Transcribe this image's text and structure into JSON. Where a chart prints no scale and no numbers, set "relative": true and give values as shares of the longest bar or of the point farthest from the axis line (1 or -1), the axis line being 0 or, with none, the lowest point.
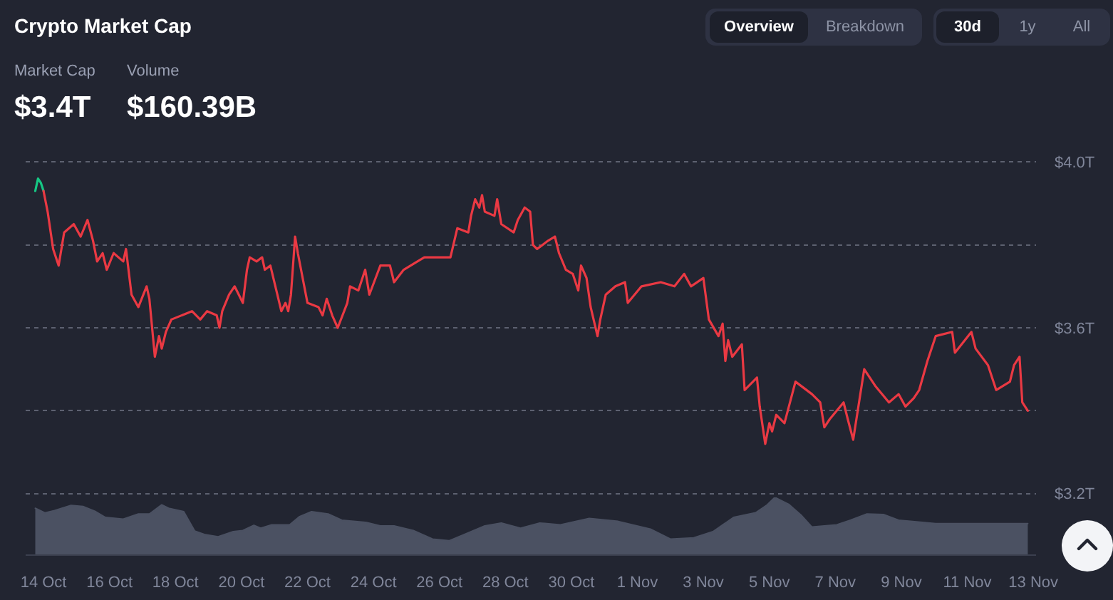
{
  "chart_data": [
    {
      "type": "other",
      "title": "Crypto Market Cap",
      "annotations": [
        "Overview",
        "Breakdown",
        "30d",
        "1y",
        "All",
        "Market Cap",
        "$3.4T",
        "Volume",
        "$160.39B"
      ]
    },
    {
      "type": "line",
      "xlim": [
        "--10-13T11:00",
        "--11-13T02:00"
      ],
      "ylim": [
        3.2,
        4.0
      ],
      "yticks": [
        {
          "value": 3.2,
          "label": "$3.2T"
        },
        {
          "value": 3.4,
          "label": null
        },
        {
          "value": 3.6,
          "label": "$3.6T"
        },
        {
          "value": 3.8,
          "label": null
        },
        {
          "value": 4.0,
          "label": "$4.0T"
        }
      ],
      "grid": "y",
      "tick_labels": "y",
      "series": [
        {
          "color": "#16c784",
          "x": [
            "--10-13T18:00",
            "--10-13T20:00",
            "--10-13T22:00",
            "--10-14T00:00"
          ],
          "values": [
            3.93,
            3.96,
            3.95,
            3.93
          ]
        },
        {
          "color": "#ea3943",
          "x": [
            "--10-14T00:00",
            "--10-14T03:00",
            "--10-14T07:00",
            "--10-14T11:00",
            "--10-14T15:00",
            "--10-14T22:00",
            "--10-15T03:00",
            "--10-15T08:00",
            "--10-15T12:00",
            "--10-15T15:00",
            "--10-15T19:00",
            "--10-15T22:00",
            "--10-16T03:00",
            "--10-16T10:00",
            "--10-16T12:00",
            "--10-16T16:00",
            "--10-16T21:00",
            "--10-17T03:00",
            "--10-17T05:00",
            "--10-17T09:00",
            "--10-17T12:00",
            "--10-17T14:00",
            "--10-17T17:00",
            "--10-17T21:00",
            "--10-18T12:00",
            "--10-18T18:00",
            "--10-18T23:00",
            "--10-19T06:00",
            "--10-19T08:00",
            "--10-19T10:00",
            "--10-19T15:00",
            "--10-19T19:00",
            "--10-20T01:00",
            "--10-20T04:00",
            "--10-20T06:00",
            "--10-20T11:00",
            "--10-20T15:00",
            "--10-20T17:00",
            "--10-20T21:00",
            "--10-21T05:00",
            "--10-21T08:00",
            "--10-21T10:00",
            "--10-21T12:00",
            "--10-21T15:00",
            "--10-21T17:00",
            "--10-22T00:00",
            "--10-22T08:00",
            "--10-22T11:00",
            "--10-22T14:00",
            "--10-22T18:00",
            "--10-22T22:00",
            "--10-23T05:00",
            "--10-23T07:00",
            "--10-23T13:00",
            "--10-23T18:00",
            "--10-23T21:00",
            "--10-24T05:00",
            "--10-24T12:00",
            "--10-24T15:00",
            "--10-24T22:00",
            "--10-25T08:00",
            "--10-25T13:00",
            "--10-26T01:00",
            "--10-26T08:00",
            "--10-26T13:00",
            "--10-26T21:00",
            "--10-26T23:00",
            "--10-27T02:00",
            "--10-27T05:00",
            "--10-27T07:00",
            "--10-27T09:00",
            "--10-27T16:00",
            "--10-27T18:00",
            "--10-27T21:00",
            "--10-28T06:00",
            "--10-28T09:00",
            "--10-28T14:00",
            "--10-28T18:00",
            "--10-28T20:00",
            "--10-28T23:00",
            "--10-29T07:00",
            "--10-29T12:00",
            "--10-29T15:00",
            "--10-29T20:00",
            "--10-30T01:00",
            "--10-30T05:00",
            "--10-30T07:00",
            "--10-30T11:00",
            "--10-30T14:00",
            "--10-30T19:00",
            "--10-30T21:00",
            "--10-31T01:00",
            "--10-31T08:00",
            "--10-31T15:00",
            "--10-31T17:00",
            "--11-01T03:00",
            "--11-01T17:00",
            "--11-02T03:00",
            "--11-02T10:00",
            "--11-02T15:00",
            "--11-03T00:00",
            "--11-03T04:00",
            "--11-03T11:00",
            "--11-03T14:00",
            "--11-03T16:00",
            "--11-03T18:00",
            "--11-03T21:00",
            "--11-04T04:00",
            "--11-04T06:00",
            "--11-04T15:00",
            "--11-04T17:00",
            "--11-04T21:00",
            "--11-05T00:00",
            "--11-05T02:00",
            "--11-05T05:00",
            "--11-05T11:00",
            "--11-05T19:00",
            "--11-06T07:00",
            "--11-06T13:00",
            "--11-06T16:00",
            "--11-06T20:00",
            "--11-07T06:00",
            "--11-07T09:00",
            "--11-07T13:00",
            "--11-07T21:00",
            "--11-08T05:00",
            "--11-08T15:00",
            "--11-08T22:00",
            "--11-09T03:00",
            "--11-09T09:00",
            "--11-09T13:00",
            "--11-09T19:00",
            "--11-10T01:00",
            "--11-10T13:00",
            "--11-10T15:00",
            "--11-11T03:00",
            "--11-11T06:00",
            "--11-11T15:00",
            "--11-11T21:00",
            "--11-12T07:00",
            "--11-12T10:00",
            "--11-12T14:00",
            "--11-12T16:00",
            "--11-12T20:00"
          ],
          "values": [
            3.93,
            3.88,
            3.79,
            3.75,
            3.83,
            3.85,
            3.82,
            3.86,
            3.81,
            3.76,
            3.78,
            3.74,
            3.78,
            3.76,
            3.79,
            3.68,
            3.65,
            3.7,
            3.67,
            3.53,
            3.58,
            3.55,
            3.59,
            3.62,
            3.64,
            3.62,
            3.64,
            3.63,
            3.6,
            3.64,
            3.68,
            3.7,
            3.66,
            3.74,
            3.77,
            3.76,
            3.77,
            3.74,
            3.75,
            3.64,
            3.66,
            3.64,
            3.68,
            3.82,
            3.78,
            3.66,
            3.65,
            3.63,
            3.67,
            3.63,
            3.6,
            3.66,
            3.7,
            3.69,
            3.74,
            3.68,
            3.75,
            3.75,
            3.71,
            3.74,
            3.76,
            3.77,
            3.77,
            3.77,
            3.84,
            3.83,
            3.87,
            3.91,
            3.89,
            3.92,
            3.88,
            3.87,
            3.91,
            3.85,
            3.83,
            3.86,
            3.89,
            3.88,
            3.8,
            3.79,
            3.81,
            3.82,
            3.78,
            3.74,
            3.73,
            3.69,
            3.75,
            3.72,
            3.65,
            3.58,
            3.62,
            3.68,
            3.7,
            3.71,
            3.66,
            3.7,
            3.71,
            3.7,
            3.73,
            3.7,
            3.72,
            3.62,
            3.58,
            3.61,
            3.52,
            3.57,
            3.53,
            3.56,
            3.45,
            3.48,
            3.41,
            3.32,
            3.37,
            3.35,
            3.39,
            3.37,
            3.47,
            3.44,
            3.42,
            3.36,
            3.38,
            3.42,
            3.38,
            3.33,
            3.5,
            3.46,
            3.42,
            3.44,
            3.41,
            3.43,
            3.45,
            3.52,
            3.58,
            3.59,
            3.54,
            3.59,
            3.55,
            3.51,
            3.45,
            3.47,
            3.51,
            3.53,
            3.42,
            3.4
          ]
        }
      ]
    },
    {
      "type": "area",
      "relative": true,
      "color": "#4b5162",
      "tick_labels": "x",
      "xlim": [
        "--10-13T11:00",
        "--11-13T02:00"
      ],
      "xticks": [
        {
          "value": "--10-14",
          "label": "14 Oct"
        },
        {
          "value": "--10-16",
          "label": "16 Oct"
        },
        {
          "value": "--10-18",
          "label": "18 Oct"
        },
        {
          "value": "--10-20",
          "label": "20 Oct"
        },
        {
          "value": "--10-22",
          "label": "22 Oct"
        },
        {
          "value": "--10-24",
          "label": "24 Oct"
        },
        {
          "value": "--10-26",
          "label": "26 Oct"
        },
        {
          "value": "--10-28",
          "label": "28 Oct"
        },
        {
          "value": "--10-30",
          "label": "30 Oct"
        },
        {
          "value": "--11-01",
          "label": "1 Nov"
        },
        {
          "value": "--11-03",
          "label": "3 Nov"
        },
        {
          "value": "--11-05",
          "label": "5 Nov"
        },
        {
          "value": "--11-07",
          "label": "7 Nov"
        },
        {
          "value": "--11-09",
          "label": "9 Nov"
        },
        {
          "value": "--11-11",
          "label": "11 Nov"
        },
        {
          "value": "--11-13",
          "label": "13 Nov"
        }
      ],
      "x": [
        "--10-13T18:00",
        "--10-14T01:00",
        "--10-14T08:00",
        "--10-14T20:00",
        "--10-15T05:00",
        "--10-15T14:00",
        "--10-15T21:00",
        "--10-16T10:00",
        "--10-16T21:00",
        "--10-17T05:00",
        "--10-17T14:00",
        "--10-17T19:00",
        "--10-18T06:00",
        "--10-18T14:00",
        "--10-18T21:00",
        "--10-19T07:00",
        "--10-19T18:00",
        "--10-20T01:00",
        "--10-20T09:00",
        "--10-20T14:00",
        "--10-20T22:00",
        "--10-21T11:00",
        "--10-21T18:00",
        "--10-22T03:00",
        "--10-22T15:00",
        "--10-23T01:00",
        "--10-23T19:00",
        "--10-24T05:00",
        "--10-24T15:00",
        "--10-25T05:00",
        "--10-25T19:00",
        "--10-26T07:00",
        "--10-26T17:00",
        "--10-27T09:00",
        "--10-27T21:00",
        "--10-28T11:00",
        "--10-29T01:00",
        "--10-29T16:00",
        "--10-30T13:00",
        "--10-31T10:00",
        "--11-01T10:00",
        "--11-02T00:00",
        "--11-02T17:00",
        "--11-03T07:00",
        "--11-03T22:00",
        "--11-04T14:00",
        "--11-04T22:00",
        "--11-05T04:00",
        "--11-05T14:00",
        "--11-05T23:00",
        "--11-06T07:00",
        "--11-07T01:00",
        "--11-07T11:00",
        "--11-07T23:00",
        "--11-08T11:00",
        "--11-08T22:00",
        "--11-10T01:00",
        "--11-11T12:00",
        "--11-12T20:00"
      ],
      "values": [
        0.81,
        0.73,
        0.77,
        0.86,
        0.84,
        0.75,
        0.65,
        0.62,
        0.71,
        0.71,
        0.87,
        0.81,
        0.75,
        0.41,
        0.35,
        0.31,
        0.4,
        0.42,
        0.51,
        0.46,
        0.52,
        0.52,
        0.66,
        0.75,
        0.71,
        0.6,
        0.56,
        0.5,
        0.5,
        0.42,
        0.27,
        0.24,
        0.34,
        0.5,
        0.55,
        0.46,
        0.55,
        0.52,
        0.63,
        0.58,
        0.44,
        0.27,
        0.29,
        0.4,
        0.65,
        0.73,
        0.86,
        1,
        0.88,
        0.69,
        0.48,
        0.52,
        0.6,
        0.71,
        0.7,
        0.6,
        0.54,
        0.54,
        0.54
      ]
    }
  ]
}
